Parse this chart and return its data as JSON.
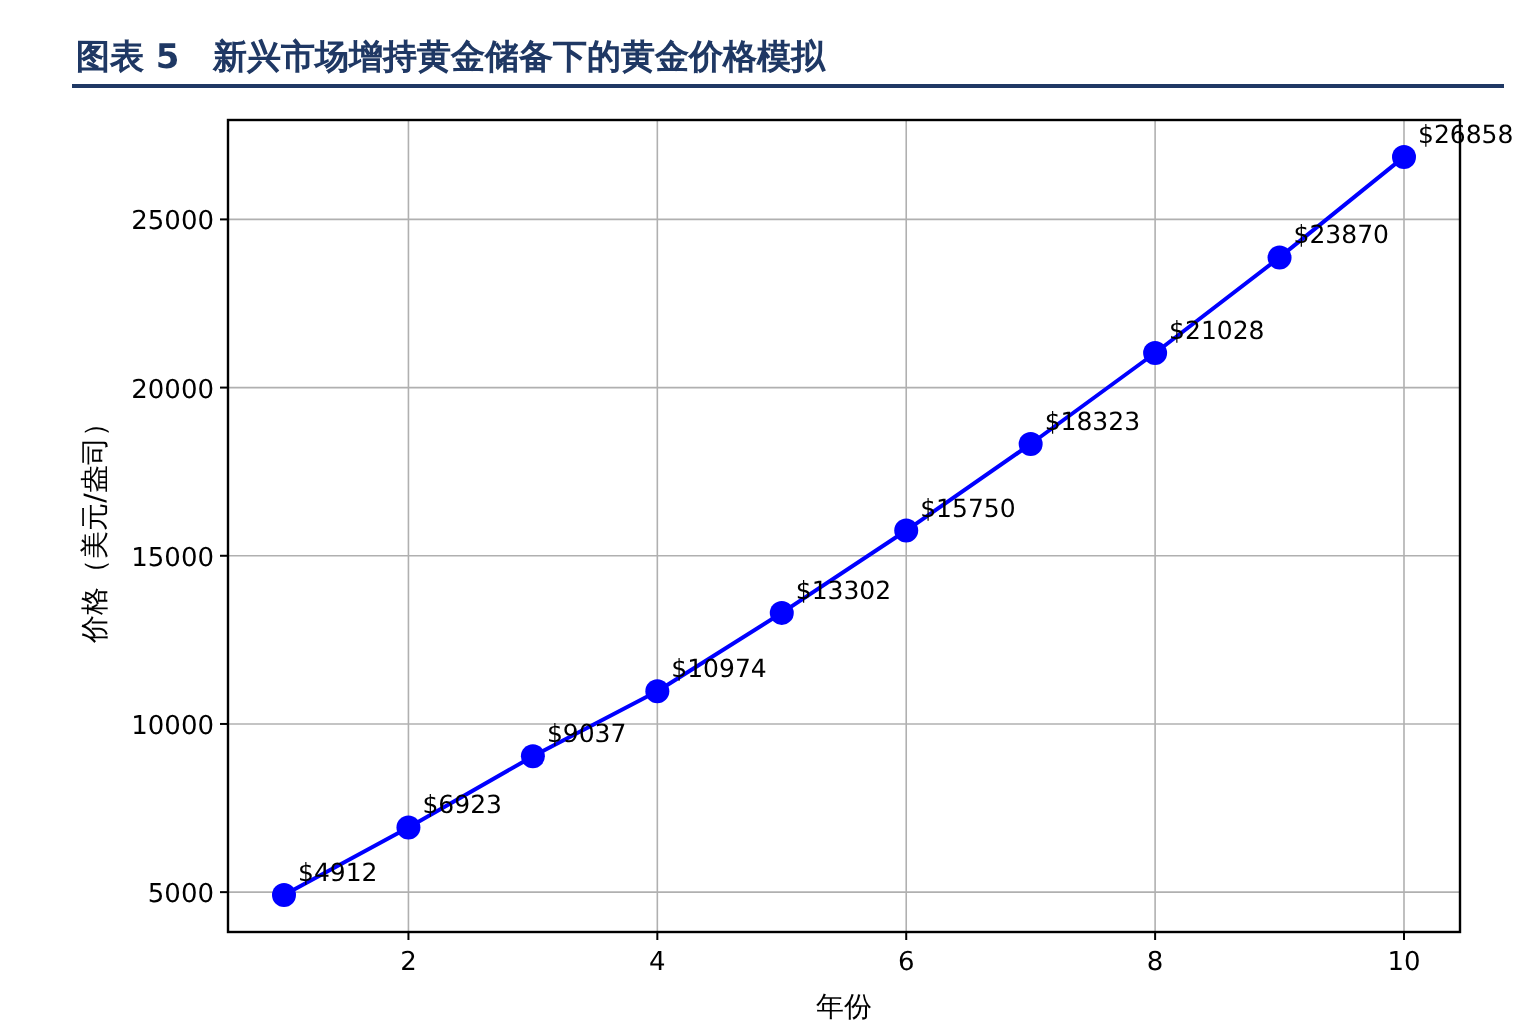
{
  "chart_data": {
    "type": "line",
    "title": "图表 5　新兴市场增持黄金储备下的黄金价格模拟",
    "xlabel": "年份",
    "ylabel": "价格（美元/盎司）",
    "x": [
      1,
      2,
      3,
      4,
      5,
      6,
      7,
      8,
      9,
      10
    ],
    "series": [
      {
        "color": "#0000ff",
        "values": [
          4912,
          6923,
          9037,
          10974,
          13302,
          15750,
          18323,
          21028,
          23870,
          26858
        ],
        "value_labels": [
          "$4912",
          "$6923",
          "$9037",
          "$10974",
          "$13302",
          "$15750",
          "$18323",
          "$21028",
          "$23870",
          "$26858"
        ]
      }
    ],
    "xlim": [
      0.55,
      10.45
    ],
    "ylim": [
      3815,
      27955
    ],
    "xticks": [
      2,
      4,
      6,
      8,
      10
    ],
    "yticks": [
      5000,
      10000,
      15000,
      20000,
      25000
    ],
    "grid": true,
    "marker": "circle",
    "line_style": "solid"
  }
}
